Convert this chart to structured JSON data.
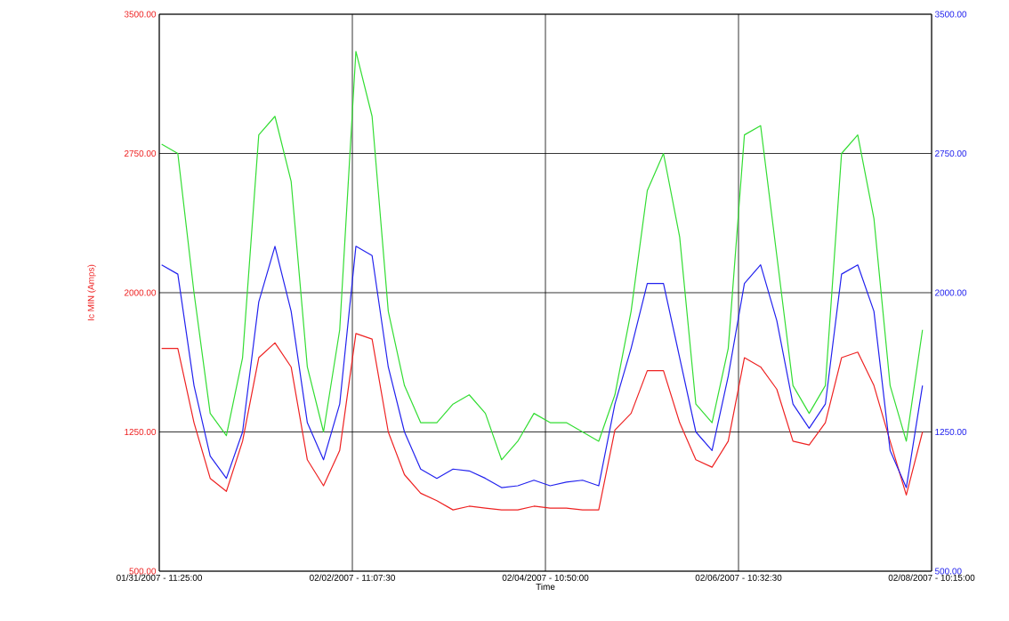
{
  "chart_data": {
    "type": "line",
    "xlabel": "Time",
    "ylabel": "Ic MIN (Amps)",
    "grid": true,
    "x": [
      "2007-01-31T12:00:00",
      "2007-01-31T16:00:00",
      "2007-01-31T20:00:00",
      "2007-02-01T00:00:00",
      "2007-02-01T04:00:00",
      "2007-02-01T08:00:00",
      "2007-02-01T12:00:00",
      "2007-02-01T16:00:00",
      "2007-02-01T20:00:00",
      "2007-02-02T00:00:00",
      "2007-02-02T04:00:00",
      "2007-02-02T08:00:00",
      "2007-02-02T12:00:00",
      "2007-02-02T16:00:00",
      "2007-02-02T20:00:00",
      "2007-02-03T00:00:00",
      "2007-02-03T04:00:00",
      "2007-02-03T08:00:00",
      "2007-02-03T12:00:00",
      "2007-02-03T16:00:00",
      "2007-02-03T20:00:00",
      "2007-02-04T00:00:00",
      "2007-02-04T04:00:00",
      "2007-02-04T08:00:00",
      "2007-02-04T12:00:00",
      "2007-02-04T16:00:00",
      "2007-02-04T20:00:00",
      "2007-02-05T00:00:00",
      "2007-02-05T04:00:00",
      "2007-02-05T08:00:00",
      "2007-02-05T12:00:00",
      "2007-02-05T16:00:00",
      "2007-02-05T20:00:00",
      "2007-02-06T00:00:00",
      "2007-02-06T04:00:00",
      "2007-02-06T08:00:00",
      "2007-02-06T12:00:00",
      "2007-02-06T16:00:00",
      "2007-02-06T20:00:00",
      "2007-02-07T00:00:00",
      "2007-02-07T04:00:00",
      "2007-02-07T08:00:00",
      "2007-02-07T12:00:00",
      "2007-02-07T16:00:00",
      "2007-02-07T20:00:00",
      "2007-02-08T00:00:00",
      "2007-02-08T04:00:00",
      "2007-02-08T08:00:00"
    ],
    "series": [
      {
        "color": "#33dd33",
        "values": [
          2800,
          2750,
          2000,
          1350,
          1230,
          1650,
          2850,
          2950,
          2600,
          1600,
          1250,
          1800,
          3300,
          2950,
          1900,
          1500,
          1300,
          1300,
          1400,
          1450,
          1350,
          1100,
          1200,
          1350,
          1300,
          1300,
          1250,
          1200,
          1450,
          1900,
          2550,
          2750,
          2300,
          1400,
          1300,
          1700,
          2850,
          2900,
          2200,
          1500,
          1350,
          1500,
          2750,
          2850,
          2400,
          1500,
          1200,
          1800
        ]
      },
      {
        "color": "#ee2222",
        "values": [
          1700,
          1700,
          1300,
          1000,
          930,
          1200,
          1650,
          1730,
          1600,
          1100,
          960,
          1150,
          1780,
          1750,
          1250,
          1020,
          920,
          880,
          830,
          850,
          840,
          830,
          830,
          850,
          840,
          840,
          830,
          830,
          1260,
          1350,
          1580,
          1580,
          1300,
          1100,
          1060,
          1200,
          1650,
          1600,
          1480,
          1200,
          1180,
          1300,
          1650,
          1680,
          1500,
          1200,
          910,
          1250
        ]
      },
      {
        "color": "#2222ee",
        "axis": "y2",
        "values": [
          2150,
          2100,
          1500,
          1120,
          1000,
          1250,
          1950,
          2250,
          1900,
          1300,
          1100,
          1400,
          2250,
          2200,
          1600,
          1250,
          1050,
          1000,
          1050,
          1040,
          1000,
          950,
          960,
          990,
          960,
          980,
          990,
          960,
          1400,
          1700,
          2050,
          2050,
          1650,
          1250,
          1150,
          1550,
          2050,
          2150,
          1850,
          1400,
          1270,
          1400,
          2100,
          2150,
          1900,
          1150,
          950,
          1500
        ]
      }
    ],
    "xlim": [
      "2007-01-31T11:25:00",
      "2007-02-08T10:15:00"
    ],
    "xticks": [
      {
        "value": "2007-01-31T11:25:00",
        "label": "01/31/2007 - 11:25:00"
      },
      {
        "value": "2007-02-02T11:07:30",
        "label": "02/02/2007 - 11:07:30"
      },
      {
        "value": "2007-02-04T10:50:00",
        "label": "02/04/2007 - 10:50:00"
      },
      {
        "value": "2007-02-06T10:32:30",
        "label": "02/06/2007 - 10:32:30"
      },
      {
        "value": "2007-02-08T10:15:00",
        "label": "02/08/2007 - 10:15:00"
      }
    ],
    "ylim": [
      500,
      3500
    ],
    "yticks": [
      {
        "value": 500,
        "label": "500.00"
      },
      {
        "value": 1250,
        "label": "1250.00"
      },
      {
        "value": 2000,
        "label": "2000.00"
      },
      {
        "value": 2750,
        "label": "2750.00"
      },
      {
        "value": 3500,
        "label": "3500.00"
      }
    ],
    "y2lim": [
      500,
      3500
    ],
    "y2ticks": [
      {
        "value": 500,
        "label": "500.00"
      },
      {
        "value": 1250,
        "label": "1250.00"
      },
      {
        "value": 2000,
        "label": "2000.00"
      },
      {
        "value": 2750,
        "label": "2750.00"
      },
      {
        "value": 3500,
        "label": "3500.00"
      }
    ]
  }
}
